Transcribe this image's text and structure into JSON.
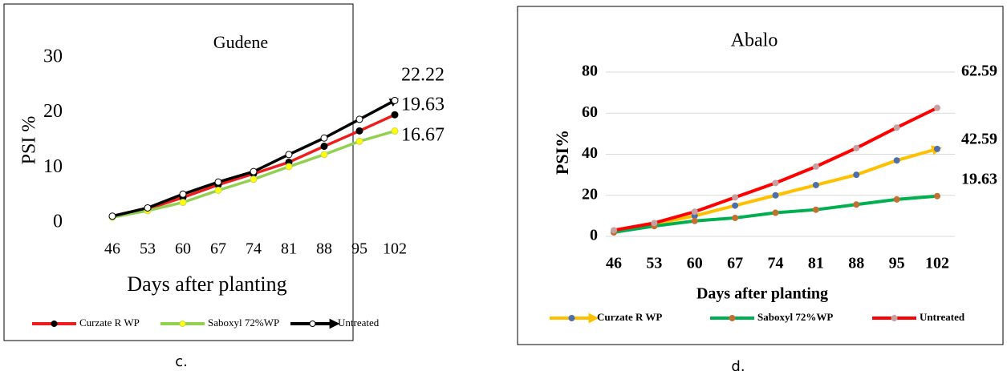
{
  "chart_data": [
    {
      "type": "line",
      "title": "Gudene",
      "caption": "c.",
      "categories": [
        "46",
        "53",
        "60",
        "67",
        "74",
        "81",
        "88",
        "95",
        "102"
      ],
      "xlabel": "Days after planting",
      "ylabel": "PSI %",
      "ylim": [
        0,
        30
      ],
      "yticks": [
        0,
        10,
        20,
        30
      ],
      "grid": false,
      "data_labels": "last",
      "series": [
        {
          "name": "Curzate R WP",
          "color": "#ee1c1c",
          "marker_color": "#000000",
          "marker_edge": "#000000",
          "values": [
            1.1,
            2.5,
            4.6,
            6.9,
            8.9,
            11.0,
            13.9,
            16.7,
            19.63
          ]
        },
        {
          "name": "Saboxyl 72%WP",
          "color": "#92d050",
          "marker_color": "#ffff00",
          "marker_edge": "#c8d860",
          "values": [
            1.0,
            2.2,
            3.7,
            5.9,
            7.9,
            10.2,
            12.4,
            14.8,
            16.67
          ]
        },
        {
          "name": "Untreated",
          "color": "#000000",
          "marker_color": "#ffffff",
          "marker_edge": "#000000",
          "arrow": true,
          "values": [
            1.2,
            2.7,
            5.2,
            7.4,
            9.3,
            12.4,
            15.4,
            18.8,
            22.22
          ]
        }
      ]
    },
    {
      "type": "line",
      "title": "Abalo",
      "caption": "d.",
      "categories": [
        "46",
        "53",
        "60",
        "67",
        "74",
        "81",
        "88",
        "95",
        "102"
      ],
      "xlabel": "Days after planting",
      "ylabel": "PSI%",
      "ylim": [
        0,
        80
      ],
      "yticks": [
        0,
        20,
        40,
        60,
        80
      ],
      "grid": true,
      "data_labels": "last",
      "series": [
        {
          "name": "Curzate R WP",
          "color": "#ffc000",
          "marker_color": "#4f6fa8",
          "marker_edge": "#4f6fa8",
          "arrow": true,
          "values": [
            2,
            6,
            10,
            15,
            20,
            25,
            30,
            37,
            42.59
          ]
        },
        {
          "name": "Saboxyl 72%WP",
          "color": "#00b050",
          "marker_color": "#c07030",
          "marker_edge": "#c07030",
          "values": [
            2,
            5,
            7.5,
            9,
            11.5,
            13,
            15.5,
            18,
            19.63
          ]
        },
        {
          "name": "Untreated",
          "color": "#ff0000",
          "marker_color": "#c8a0a0",
          "marker_edge": "#c8a0a0",
          "values": [
            3,
            6.5,
            12,
            19,
            26,
            34,
            43,
            53,
            62.59
          ]
        }
      ]
    }
  ]
}
